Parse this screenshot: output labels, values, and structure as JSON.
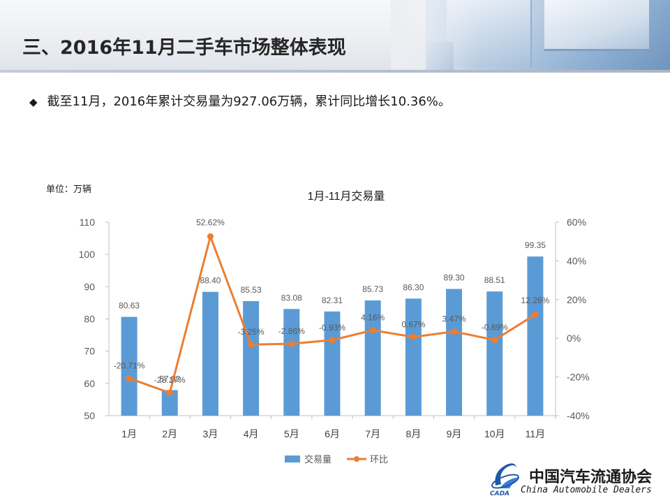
{
  "header": {
    "title": "三、2016年11月二手车市场整体表现"
  },
  "bullet": {
    "symbol": "◆",
    "text": "截至11月，2016年累计交易量为927.06万辆，累计同比增长10.36%。"
  },
  "logo": {
    "cn": "中国汽车流通协会",
    "en": "China Automobile Dealers",
    "mark": "CADA"
  },
  "chart_data": {
    "type": "bar",
    "title": "1月-11月交易量",
    "unit": "单位：万辆",
    "categories": [
      "1月",
      "2月",
      "3月",
      "4月",
      "5月",
      "6月",
      "7月",
      "8月",
      "9月",
      "10月",
      "11月"
    ],
    "series": [
      {
        "name": "交易量",
        "type": "bar",
        "axis": "left",
        "color": "#5b9bd5",
        "values": [
          80.63,
          57.92,
          88.4,
          85.53,
          83.08,
          82.31,
          85.73,
          86.3,
          89.3,
          88.51,
          99.35
        ],
        "labels": [
          "80.63",
          "57.92",
          "88.40",
          "85.53",
          "83.08",
          "82.31",
          "85.73",
          "86.30",
          "89.30",
          "88.51",
          "99.35"
        ]
      },
      {
        "name": "环比",
        "type": "line",
        "axis": "right",
        "color": "#ed7d31",
        "values": [
          -20.71,
          -28.17,
          52.62,
          -3.25,
          -2.86,
          -0.93,
          4.16,
          0.67,
          3.47,
          -0.89,
          12.26
        ],
        "labels": [
          "-20.71%",
          "-28.17%",
          "52.62%",
          "-3.25%",
          "-2.86%",
          "-0.93%",
          "4.16%",
          "0.67%",
          "3.47%",
          "-0.89%",
          "12.26%"
        ]
      }
    ],
    "y_left": {
      "min": 50,
      "max": 110,
      "ticks": [
        "50",
        "60",
        "70",
        "80",
        "90",
        "100",
        "110"
      ]
    },
    "y_right": {
      "min": -40,
      "max": 60,
      "ticks": [
        "-40%",
        "-20%",
        "0%",
        "20%",
        "40%",
        "60%"
      ]
    },
    "grid": false,
    "legend_position": "bottom"
  }
}
